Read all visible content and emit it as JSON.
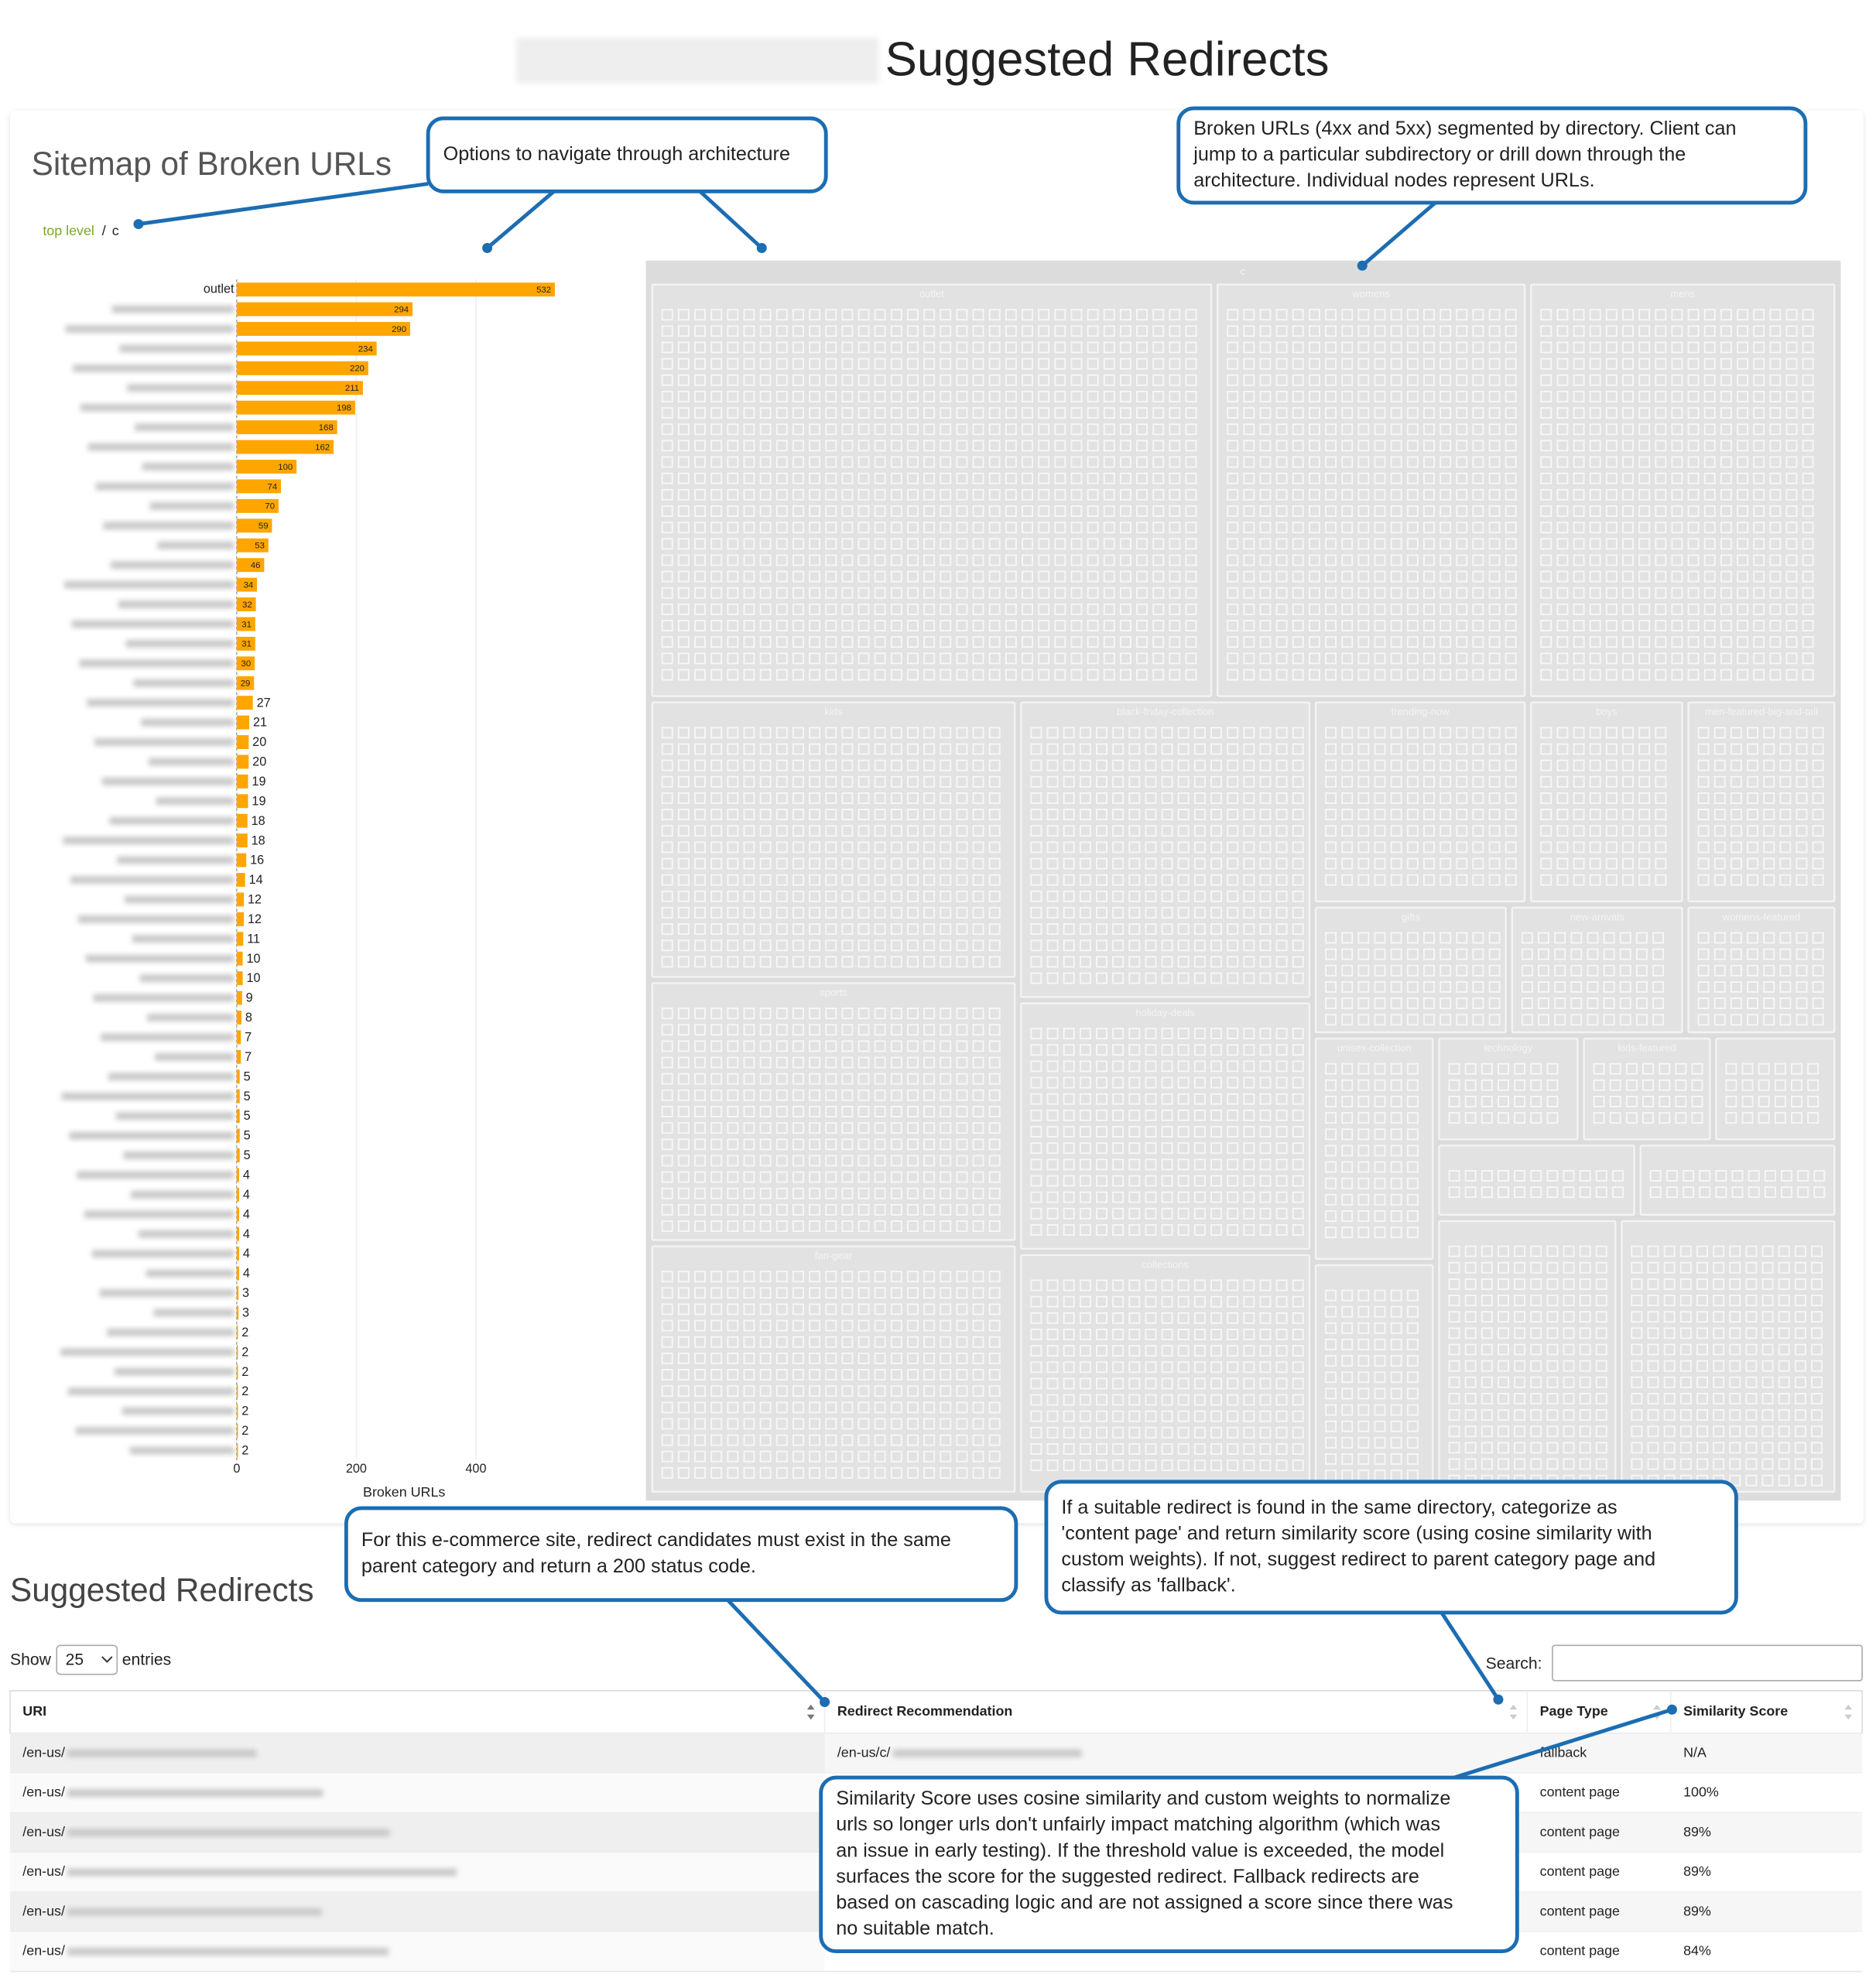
{
  "header": {
    "title": "Suggested Redirects"
  },
  "sitemap": {
    "title": "Sitemap of Broken URLs",
    "breadcrumb": [
      "top level",
      "/",
      "c"
    ]
  },
  "chart_data": {
    "type": "bar",
    "orientation": "horizontal",
    "categories": [
      "outlet",
      null,
      null,
      null,
      null,
      null,
      null,
      null,
      null,
      null,
      null,
      null,
      null,
      null,
      null,
      null,
      null,
      null,
      null,
      null,
      null,
      null,
      null,
      null,
      null,
      null,
      null,
      null,
      null,
      null,
      null,
      null,
      null,
      null,
      null,
      null,
      null,
      null,
      null,
      null,
      null,
      null,
      null,
      null,
      null,
      null,
      null,
      null,
      null,
      null,
      null,
      null,
      null,
      null,
      null,
      null,
      null,
      null,
      null,
      null
    ],
    "values": [
      532,
      294,
      290,
      234,
      220,
      211,
      198,
      168,
      162,
      100,
      74,
      70,
      59,
      53,
      46,
      34,
      32,
      31,
      31,
      30,
      29,
      27,
      21,
      20,
      20,
      19,
      19,
      18,
      18,
      16,
      14,
      12,
      12,
      11,
      10,
      10,
      9,
      8,
      7,
      7,
      5,
      5,
      5,
      5,
      5,
      4,
      4,
      4,
      4,
      4,
      4,
      3,
      3,
      2,
      2,
      2,
      2,
      2,
      2,
      2
    ],
    "color": "#ffa500",
    "xlim": [
      0,
      560
    ],
    "xticks": [
      0,
      200,
      400
    ],
    "xlabel": "Broken URLs",
    "grid": true
  },
  "treemap": {
    "root": "c",
    "sections": [
      "outlet",
      "womens",
      "mens",
      "kids",
      "black-friday-collection",
      "trending-now",
      "boys",
      "men-featured-big-and-tall",
      "sports",
      "holiday-deals",
      "gifts",
      "new-arrivals",
      "womens-featured",
      "fan-gear",
      "collections",
      "unisex-collection",
      "technology",
      "kids-featured"
    ]
  },
  "annotations": [
    {
      "lines": [
        "Options to navigate through architecture"
      ]
    },
    {
      "lines": [
        "Broken URLs (4xx and 5xx) segmented by directory. Client can",
        "jump to a particular subdirectory or drill down through the",
        "architecture. Individual nodes represent URLs."
      ]
    },
    {
      "lines": [
        "For this e-commerce site, redirect candidates must exist in the same",
        "parent category and return a 200 status code."
      ]
    },
    {
      "lines": [
        "If a suitable redirect is found in the same directory, categorize as",
        "'content page' and return similarity score (using cosine similarity with",
        "custom weights). If not, suggest redirect to parent category page and",
        "classify as 'fallback'."
      ]
    },
    {
      "lines": [
        "Similarity Score uses cosine similarity and custom weights to normalize",
        "urls so longer urls don't unfairly impact matching algorithm (which was",
        "an issue in early testing). If the threshold value is exceeded, the model",
        "surfaces the score for the suggested redirect. Fallback redirects are",
        "based on cascading logic and are not assigned a score since there was",
        "no suitable match."
      ]
    }
  ],
  "table": {
    "title": "Suggested Redirects",
    "show_label": "Show",
    "length": "25",
    "entries_label": "entries",
    "search_label": "Search:",
    "columns": [
      "URI",
      "Redirect Recommendation",
      "Page Type",
      "Similarity Score"
    ],
    "rows": [
      [
        "/en-us/",
        "/en-us/c/",
        "fallback",
        "N/A"
      ],
      [
        "/en-us/",
        null,
        "content page",
        "100%"
      ],
      [
        "/en-us/",
        null,
        "content page",
        "89%"
      ],
      [
        "/en-us/",
        null,
        "content page",
        "89%"
      ],
      [
        "/en-us/",
        null,
        "content page",
        "89%"
      ],
      [
        "/en-us/",
        null,
        "content page",
        "84%"
      ]
    ]
  }
}
